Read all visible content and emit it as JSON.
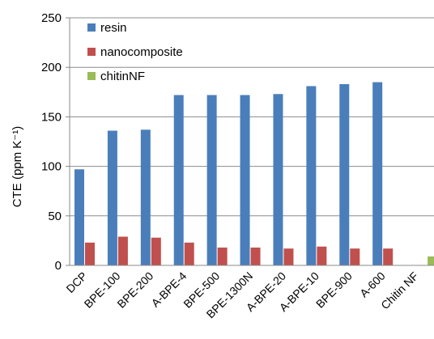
{
  "chart_data": {
    "type": "bar",
    "title": "",
    "xlabel": "",
    "ylabel": "CTE (ppm K⁻¹)",
    "ylim": [
      0,
      250
    ],
    "yticks": [
      0,
      50,
      100,
      150,
      200,
      250
    ],
    "grid": "horizontal",
    "legend_position": "top-left",
    "categories": [
      "DCP",
      "BPE-100",
      "BPE-200",
      "A-BPE-4",
      "BPE-500",
      "BPE-1300N",
      "A-BPE-20",
      "A-BPE-10",
      "BPE-900",
      "A-600",
      "Chitin NF"
    ],
    "series": [
      {
        "name": "resin",
        "color": "#4a7ebb",
        "values": [
          97,
          136,
          137,
          172,
          172,
          172,
          173,
          181,
          183,
          185,
          null
        ]
      },
      {
        "name": "nanocomposite",
        "color": "#c0504d",
        "values": [
          23,
          29,
          28,
          23,
          18,
          18,
          17,
          19,
          17,
          17,
          null
        ]
      },
      {
        "name": "chitinNF",
        "color": "#9bbb59",
        "values": [
          null,
          null,
          null,
          null,
          null,
          null,
          null,
          null,
          null,
          null,
          9
        ]
      }
    ]
  }
}
